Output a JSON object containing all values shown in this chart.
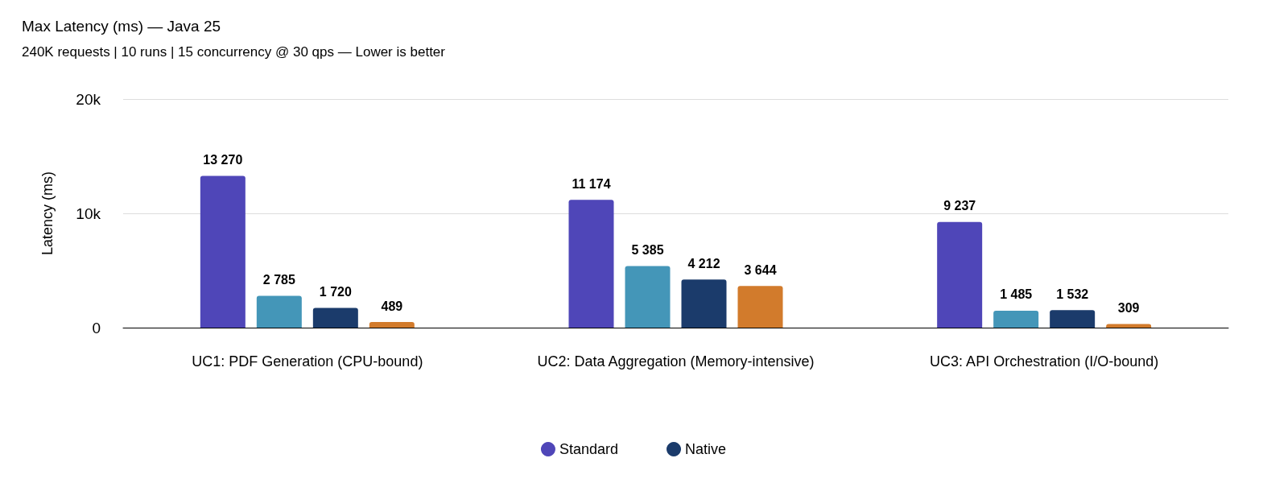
{
  "chart_data": {
    "type": "bar",
    "title": "Max Latency (ms) — Java 25",
    "subtitle": "240K requests | 10 runs | 15 concurrency @ 30 qps — Lower is better",
    "ylabel": "Latency (ms)",
    "categories": [
      "UC1: PDF Generation (CPU-bound)",
      "UC2: Data Aggregation (Memory-intensive)",
      "UC3: API Orchestration (I/O-bound)"
    ],
    "series": [
      {
        "name": "Standard",
        "color": "#4f46b8",
        "values": [
          13270,
          11174,
          9237
        ],
        "value_labels": [
          "13 270",
          "11 174",
          "9 237"
        ]
      },
      {
        "color": "#4496b8",
        "values": [
          2785,
          5385,
          1485
        ],
        "value_labels": [
          "2 785",
          "5 385",
          "1 485"
        ]
      },
      {
        "name": "Native",
        "color": "#1b3b6b",
        "values": [
          1720,
          4212,
          1532
        ],
        "value_labels": [
          "1 720",
          "4 212",
          "1 532"
        ]
      },
      {
        "color": "#d27b2c",
        "values": [
          489,
          3644,
          309
        ],
        "value_labels": [
          "489",
          "3 644",
          "309"
        ]
      }
    ],
    "ylim": [
      0,
      20000
    ],
    "yticks": [
      {
        "value": 0,
        "label": "0"
      },
      {
        "value": 10000,
        "label": "10k"
      },
      {
        "value": 20000,
        "label": "20k"
      }
    ],
    "grid": "y",
    "legend": "bottom"
  }
}
